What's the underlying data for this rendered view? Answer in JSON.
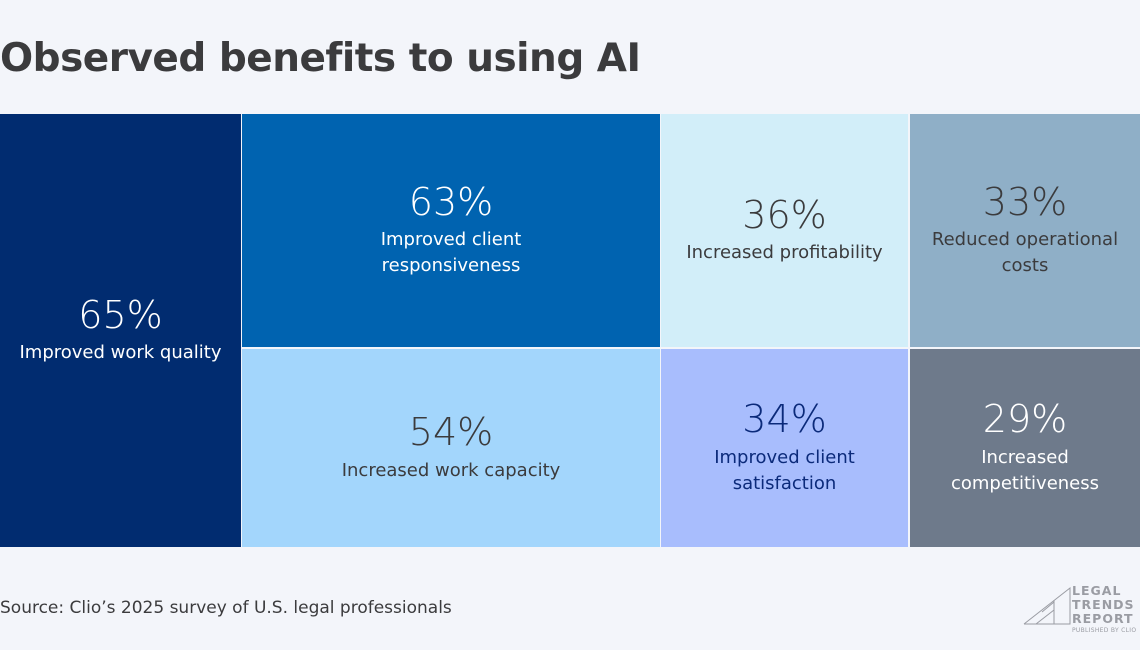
{
  "chart_data": {
    "type": "treemap",
    "title": "Observed benefits to using AI",
    "items": [
      {
        "value": "65%",
        "label": "Improved work quality",
        "color": "#012c70",
        "text_color": "#ffffff"
      },
      {
        "value": "63%",
        "label": "Improved client responsiveness",
        "color": "#0063b0",
        "text_color": "#ffffff"
      },
      {
        "value": "36%",
        "label": "Increased profitability",
        "color": "#d2eef9",
        "text_color": "#3b3b3d"
      },
      {
        "value": "33%",
        "label": "Reduced operational costs",
        "color": "#8fafc7",
        "text_color": "#3b3b3d"
      },
      {
        "value": "54%",
        "label": "Increased work capacity",
        "color": "#a3d6fc",
        "text_color": "#3b3b3d"
      },
      {
        "value": "34%",
        "label": "Improved client satisfaction",
        "color": "#a8bdfd",
        "text_color": "#0b2a7a"
      },
      {
        "value": "29%",
        "label": "Increased competitiveness",
        "color": "#6e7a8b",
        "text_color": "#ffffff"
      }
    ],
    "source": "Source: Clio’s 2025 survey of U.S. legal professionals"
  },
  "logo": {
    "lines": [
      "LEGAL",
      "TRENDS",
      "REPORT"
    ],
    "tagline": "PUBLISHED BY CLIO"
  }
}
